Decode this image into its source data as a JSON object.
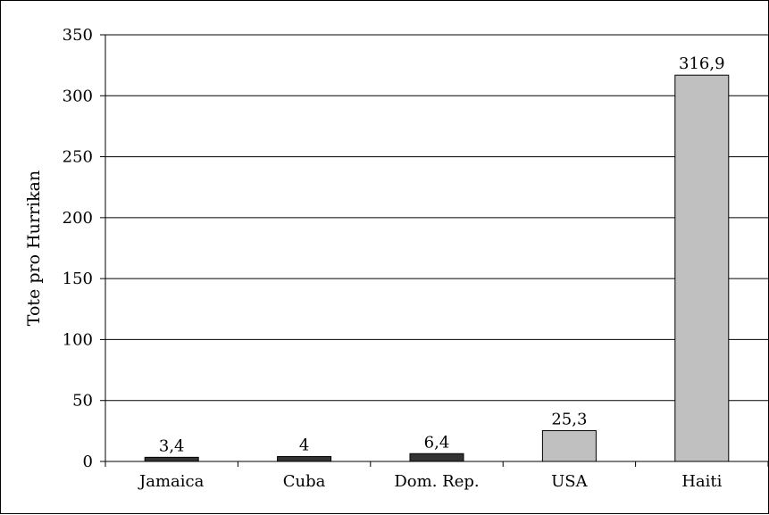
{
  "chart_data": {
    "type": "bar",
    "title": "",
    "xlabel": "",
    "ylabel": "Tote pro Hurrikan",
    "categories": [
      "Jamaica",
      "Cuba",
      "Dom. Rep.",
      "USA",
      "Haiti"
    ],
    "values": [
      3.4,
      4,
      6.4,
      25.3,
      316.9
    ],
    "value_labels": [
      "3,4",
      "4",
      "6,4",
      "25,3",
      "316,9"
    ],
    "bar_colors": [
      "#333333",
      "#333333",
      "#333333",
      "#c0c0c0",
      "#c0c0c0"
    ],
    "ylim": [
      0,
      350
    ],
    "yticks": [
      0,
      50,
      100,
      150,
      200,
      250,
      300,
      350
    ],
    "grid": true,
    "legend": "none"
  }
}
